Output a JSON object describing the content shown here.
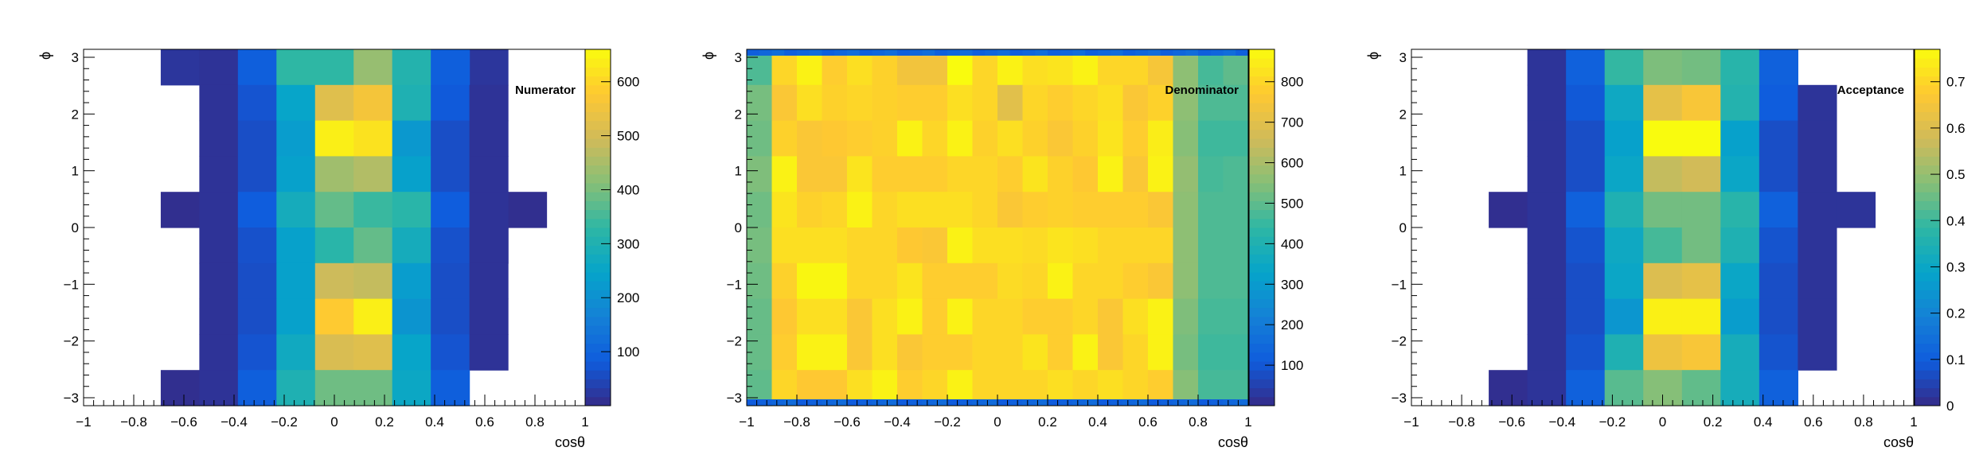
{
  "chart_data": [
    {
      "type": "heatmap",
      "title": "Numerator",
      "xlabel": "cosθ",
      "ylabel": "ϕ",
      "xlim": [
        -1,
        1
      ],
      "ylim": [
        -3.14,
        3.14
      ],
      "x_ticks": [
        -1,
        -0.8,
        -0.6,
        -0.4,
        -0.2,
        0,
        0.2,
        0.4,
        0.6,
        0.8,
        1
      ],
      "x_tick_labels": [
        "−1",
        "−0.8",
        "−0.6",
        "−0.4",
        "−0.2",
        "0",
        "0.2",
        "0.4",
        "0.6",
        "0.8",
        "1"
      ],
      "y_ticks": [
        -3,
        -2,
        -1,
        0,
        1,
        2,
        3
      ],
      "y_tick_labels": [
        "−3",
        "−2",
        "−1",
        "0",
        "1",
        "2",
        "3"
      ],
      "z_range": [
        0,
        660
      ],
      "z_ticks": [
        100,
        200,
        300,
        400,
        500,
        600
      ],
      "z_tick_labels": [
        "100",
        "200",
        "300",
        "400",
        "500",
        "600"
      ],
      "x_bins": 13,
      "y_bins": 10,
      "cells": [
        [
          null,
          null,
          null,
          15,
          90,
          330,
          330,
          430,
          310,
          90,
          null,
          null,
          null
        ],
        [
          null,
          null,
          null,
          15,
          70,
          250,
          520,
          560,
          300,
          80,
          15,
          null,
          null
        ],
        [
          null,
          null,
          null,
          15,
          60,
          230,
          640,
          620,
          220,
          60,
          15,
          null,
          null
        ],
        [
          null,
          null,
          null,
          15,
          60,
          240,
          440,
          460,
          240,
          60,
          15,
          null,
          null
        ],
        [
          null,
          null,
          null,
          15,
          85,
          280,
          380,
          340,
          320,
          85,
          15,
          null,
          null
        ],
        [
          null,
          null,
          null,
          15,
          65,
          240,
          320,
          380,
          280,
          65,
          15,
          null,
          null
        ],
        [
          null,
          null,
          null,
          15,
          60,
          240,
          490,
          480,
          230,
          60,
          15,
          null,
          null
        ],
        [
          null,
          null,
          null,
          15,
          60,
          240,
          580,
          640,
          210,
          60,
          15,
          null,
          null
        ],
        [
          null,
          null,
          null,
          15,
          70,
          270,
          510,
          520,
          250,
          70,
          15,
          null,
          null
        ],
        [
          null,
          null,
          null,
          15,
          90,
          300,
          390,
          390,
          260,
          90,
          null,
          null,
          null
        ]
      ],
      "ghost_cells": [
        [
          null,
          null,
          20,
          20,
          20,
          20,
          20,
          20,
          20,
          20,
          20,
          null,
          null
        ],
        [
          null,
          null,
          null,
          null,
          null,
          null,
          null,
          null,
          null,
          null,
          null,
          null,
          null
        ],
        [
          null,
          null,
          null,
          null,
          null,
          null,
          null,
          null,
          null,
          null,
          null,
          null,
          null
        ],
        [
          null,
          null,
          null,
          null,
          null,
          null,
          null,
          null,
          null,
          null,
          null,
          null,
          null
        ],
        [
          null,
          null,
          8,
          null,
          null,
          null,
          null,
          null,
          null,
          null,
          8,
          8,
          null
        ],
        [
          null,
          null,
          null,
          null,
          null,
          null,
          null,
          null,
          null,
          null,
          8,
          null,
          null
        ],
        [
          null,
          null,
          null,
          null,
          null,
          null,
          null,
          null,
          null,
          null,
          null,
          null,
          null
        ],
        [
          null,
          null,
          null,
          null,
          null,
          null,
          null,
          null,
          null,
          null,
          null,
          null,
          null
        ],
        [
          null,
          null,
          null,
          null,
          null,
          null,
          null,
          null,
          null,
          null,
          null,
          null,
          null
        ],
        [
          null,
          null,
          8,
          null,
          null,
          null,
          null,
          null,
          null,
          null,
          null,
          null,
          null
        ]
      ]
    },
    {
      "type": "heatmap",
      "title": "Denominator",
      "xlabel": "cosθ",
      "ylabel": "ϕ",
      "xlim": [
        -1,
        1
      ],
      "ylim": [
        -3.14,
        3.14
      ],
      "x_ticks": [
        -1,
        -0.8,
        -0.6,
        -0.4,
        -0.2,
        0,
        0.2,
        0.4,
        0.6,
        0.8,
        1
      ],
      "x_tick_labels": [
        "−1",
        "−0.8",
        "−0.6",
        "−0.4",
        "−0.2",
        "0",
        "0.2",
        "0.4",
        "0.6",
        "0.8",
        "1"
      ],
      "y_ticks": [
        -3,
        -2,
        -1,
        0,
        1,
        2,
        3
      ],
      "y_tick_labels": [
        "−3",
        "−2",
        "−1",
        "0",
        "1",
        "2",
        "3"
      ],
      "z_range": [
        0,
        880
      ],
      "z_ticks": [
        100,
        200,
        300,
        400,
        500,
        600,
        700,
        800
      ],
      "z_tick_labels": [
        "100",
        "200",
        "300",
        "400",
        "500",
        "600",
        "700",
        "800"
      ],
      "note": "fine bins along the top and bottom edge rows",
      "cells": [
        [
          480,
          800,
          860,
          780,
          820,
          790,
          740,
          740,
          880,
          800,
          860,
          820,
          830,
          860,
          800,
          800,
          750,
          560,
          470,
          500
        ],
        [
          530,
          760,
          820,
          790,
          800,
          790,
          780,
          780,
          820,
          800,
          700,
          800,
          780,
          800,
          820,
          760,
          790,
          560,
          480,
          480
        ],
        [
          520,
          790,
          760,
          770,
          780,
          790,
          860,
          800,
          860,
          790,
          820,
          790,
          760,
          790,
          830,
          780,
          850,
          550,
          460,
          460
        ],
        [
          540,
          860,
          760,
          760,
          830,
          780,
          780,
          780,
          800,
          800,
          780,
          830,
          790,
          770,
          860,
          760,
          860,
          570,
          470,
          480
        ],
        [
          520,
          830,
          790,
          800,
          860,
          800,
          820,
          820,
          820,
          800,
          760,
          780,
          790,
          780,
          780,
          780,
          760,
          560,
          480,
          480
        ],
        [
          530,
          820,
          820,
          820,
          800,
          800,
          770,
          760,
          860,
          820,
          820,
          810,
          830,
          820,
          800,
          800,
          800,
          560,
          480,
          480
        ],
        [
          520,
          790,
          870,
          870,
          800,
          800,
          830,
          780,
          780,
          780,
          810,
          800,
          860,
          800,
          800,
          780,
          760,
          560,
          480,
          480
        ],
        [
          510,
          770,
          820,
          820,
          760,
          820,
          860,
          780,
          860,
          800,
          800,
          780,
          780,
          800,
          760,
          820,
          860,
          540,
          470,
          470
        ],
        [
          510,
          780,
          860,
          860,
          760,
          820,
          760,
          780,
          780,
          800,
          800,
          830,
          780,
          860,
          760,
          800,
          860,
          530,
          460,
          460
        ],
        [
          500,
          800,
          770,
          770,
          820,
          860,
          780,
          800,
          860,
          800,
          800,
          800,
          820,
          800,
          820,
          800,
          780,
          550,
          470,
          470
        ]
      ]
    },
    {
      "type": "heatmap",
      "title": "Acceptance",
      "xlabel": "cosθ",
      "ylabel": "ϕ",
      "xlim": [
        -1,
        1
      ],
      "ylim": [
        -3.14,
        3.14
      ],
      "x_ticks": [
        -1,
        -0.8,
        -0.6,
        -0.4,
        -0.2,
        0,
        0.2,
        0.4,
        0.6,
        0.8,
        1
      ],
      "x_tick_labels": [
        "−1",
        "−0.8",
        "−0.6",
        "−0.4",
        "−0.2",
        "0",
        "0.2",
        "0.4",
        "0.6",
        "0.8",
        "1"
      ],
      "y_ticks": [
        -3,
        -2,
        -1,
        0,
        1,
        2,
        3
      ],
      "y_tick_labels": [
        "−3",
        "−2",
        "−1",
        "0",
        "1",
        "2",
        "3"
      ],
      "z_range": [
        0,
        0.77
      ],
      "z_ticks": [
        0,
        0.1,
        0.2,
        0.3,
        0.4,
        0.5,
        0.6,
        0.7
      ],
      "z_tick_labels": [
        "0",
        "0.1",
        "0.2",
        "0.3",
        "0.4",
        "0.5",
        "0.6",
        "0.7"
      ],
      "cells": [
        [
          null,
          null,
          null,
          0.02,
          0.11,
          0.39,
          0.47,
          0.46,
          0.37,
          0.11,
          null,
          null,
          null
        ],
        [
          null,
          null,
          null,
          0.02,
          0.09,
          0.31,
          0.62,
          0.66,
          0.36,
          0.1,
          0.02,
          null,
          null
        ],
        [
          null,
          null,
          null,
          0.02,
          0.07,
          0.28,
          0.77,
          0.77,
          0.28,
          0.07,
          0.02,
          null,
          null
        ],
        [
          null,
          null,
          null,
          0.02,
          0.07,
          0.3,
          0.56,
          0.58,
          0.3,
          0.07,
          0.02,
          null,
          null
        ],
        [
          null,
          null,
          null,
          0.02,
          0.11,
          0.35,
          0.46,
          0.46,
          0.37,
          0.11,
          0.02,
          0.02,
          null
        ],
        [
          null,
          null,
          null,
          0.02,
          0.08,
          0.31,
          0.41,
          0.46,
          0.35,
          0.08,
          0.02,
          null,
          null
        ],
        [
          null,
          null,
          null,
          0.02,
          0.07,
          0.3,
          0.6,
          0.62,
          0.3,
          0.07,
          0.02,
          null,
          null
        ],
        [
          null,
          null,
          null,
          0.02,
          0.07,
          0.25,
          0.75,
          0.75,
          0.27,
          0.07,
          0.02,
          null,
          null
        ],
        [
          null,
          null,
          null,
          0.02,
          0.08,
          0.35,
          0.64,
          0.66,
          0.33,
          0.08,
          0.02,
          null,
          null
        ],
        [
          null,
          null,
          null,
          0.02,
          0.11,
          0.43,
          0.48,
          0.44,
          0.33,
          0.11,
          null,
          null,
          null
        ]
      ],
      "ghost_cells": [
        [
          null,
          null,
          null,
          null,
          null,
          null,
          null,
          null,
          null,
          null,
          null,
          null,
          null
        ],
        [
          null,
          null,
          null,
          null,
          null,
          null,
          null,
          null,
          null,
          null,
          null,
          null,
          null
        ],
        [
          null,
          null,
          null,
          null,
          null,
          null,
          null,
          null,
          null,
          null,
          null,
          null,
          null
        ],
        [
          null,
          null,
          null,
          null,
          null,
          null,
          null,
          null,
          null,
          null,
          null,
          null,
          null
        ],
        [
          null,
          null,
          0.01,
          null,
          null,
          null,
          null,
          null,
          null,
          null,
          null,
          null,
          null
        ],
        [
          null,
          null,
          null,
          null,
          null,
          null,
          null,
          null,
          null,
          null,
          null,
          null,
          null
        ],
        [
          null,
          null,
          null,
          null,
          null,
          null,
          null,
          null,
          null,
          null,
          null,
          null,
          null
        ],
        [
          null,
          null,
          null,
          null,
          null,
          null,
          null,
          null,
          null,
          null,
          null,
          null,
          null
        ],
        [
          null,
          null,
          null,
          null,
          null,
          null,
          null,
          null,
          null,
          null,
          null,
          null,
          null
        ],
        [
          null,
          null,
          0.01,
          null,
          null,
          null,
          null,
          null,
          null,
          null,
          null,
          null,
          null
        ]
      ]
    }
  ],
  "palette": [
    "#352a87",
    "#0f5cdd",
    "#1481d6",
    "#06a4ca",
    "#2eb7a4",
    "#87bf77",
    "#d1bb59",
    "#fec832",
    "#f9fb0e"
  ],
  "empty_color": "#ffffff"
}
